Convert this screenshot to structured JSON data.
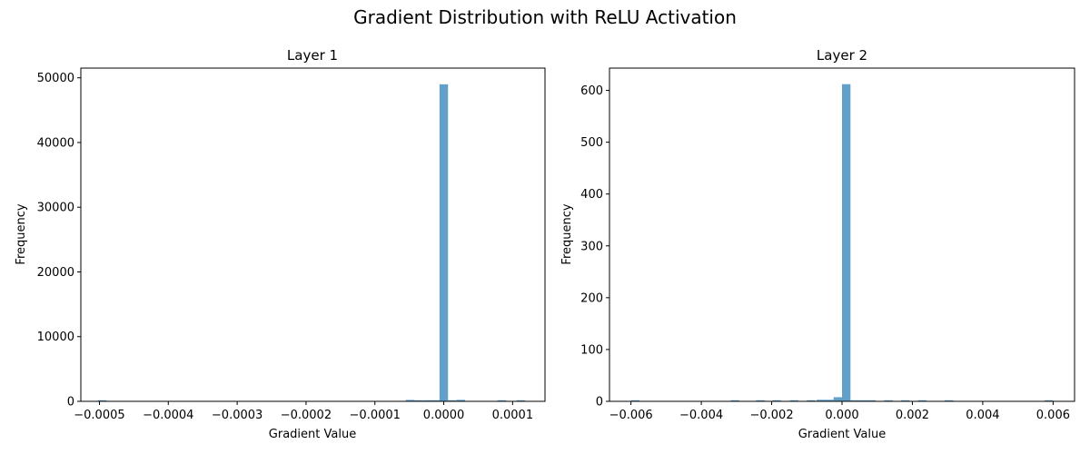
{
  "figure": {
    "suptitle": "Gradient Distribution with ReLU Activation"
  },
  "chart_data": [
    {
      "type": "bar",
      "title": "Layer 1",
      "xlabel": "Gradient Value",
      "ylabel": "Frequency",
      "xlim": [
        -0.000527,
        0.000147
      ],
      "ylim": [
        0,
        51500
      ],
      "xticks": [
        -0.0005,
        -0.0004,
        -0.0003,
        -0.0002,
        -0.0001,
        0.0,
        0.0001
      ],
      "xtick_labels": [
        "−0.0005",
        "−0.0004",
        "−0.0003",
        "−0.0002",
        "−0.0001",
        "0.0000",
        "0.0001"
      ],
      "yticks": [
        0,
        10000,
        20000,
        30000,
        40000,
        50000
      ],
      "ytick_labels": [
        "0",
        "10000",
        "20000",
        "30000",
        "40000",
        "50000"
      ],
      "bin_width": 1.24e-05,
      "bars": [
        {
          "x": -0.000496,
          "value": 120
        },
        {
          "x": -4.9e-05,
          "value": 220
        },
        {
          "x": -3.7e-05,
          "value": 120
        },
        {
          "x": -2.4e-05,
          "value": 90
        },
        {
          "x": -1.2e-05,
          "value": 140
        },
        {
          "x": 0.0,
          "value": 49000
        },
        {
          "x": 1.24e-05,
          "value": 60
        },
        {
          "x": 2.48e-05,
          "value": 230
        },
        {
          "x": 8.43e-05,
          "value": 90
        },
        {
          "x": 0.000112,
          "value": 100
        }
      ],
      "grid": false,
      "color": "#1f77b4",
      "alpha": 0.7
    },
    {
      "type": "bar",
      "title": "Layer 2",
      "xlabel": "Gradient Value",
      "ylabel": "Frequency",
      "xlim": [
        -0.00661,
        0.00661
      ],
      "ylim": [
        0,
        643
      ],
      "xticks": [
        -0.006,
        -0.004,
        -0.002,
        0.0,
        0.002,
        0.004,
        0.006
      ],
      "xtick_labels": [
        "−0.006",
        "−0.004",
        "−0.002",
        "0.000",
        "0.002",
        "0.004",
        "0.006"
      ],
      "yticks": [
        0,
        100,
        200,
        300,
        400,
        500,
        600
      ],
      "ytick_labels": [
        "0",
        "100",
        "200",
        "300",
        "400",
        "500",
        "600"
      ],
      "bin_width": 0.00024,
      "bars": [
        {
          "x": -0.00588,
          "value": 2
        },
        {
          "x": -0.00304,
          "value": 2
        },
        {
          "x": -0.00232,
          "value": 2
        },
        {
          "x": -0.00186,
          "value": 2
        },
        {
          "x": -0.00136,
          "value": 2
        },
        {
          "x": -0.00088,
          "value": 2
        },
        {
          "x": -0.0006,
          "value": 3
        },
        {
          "x": -0.00036,
          "value": 3
        },
        {
          "x": -0.00012,
          "value": 8
        },
        {
          "x": 0.00012,
          "value": 612
        },
        {
          "x": 0.00036,
          "value": 2
        },
        {
          "x": 0.0006,
          "value": 2
        },
        {
          "x": 0.00084,
          "value": 2
        },
        {
          "x": 0.00132,
          "value": 2
        },
        {
          "x": 0.0018,
          "value": 2
        },
        {
          "x": 0.00228,
          "value": 2
        },
        {
          "x": 0.00304,
          "value": 2
        },
        {
          "x": 0.00588,
          "value": 2
        }
      ],
      "grid": false,
      "color": "#1f77b4",
      "alpha": 0.7
    }
  ]
}
